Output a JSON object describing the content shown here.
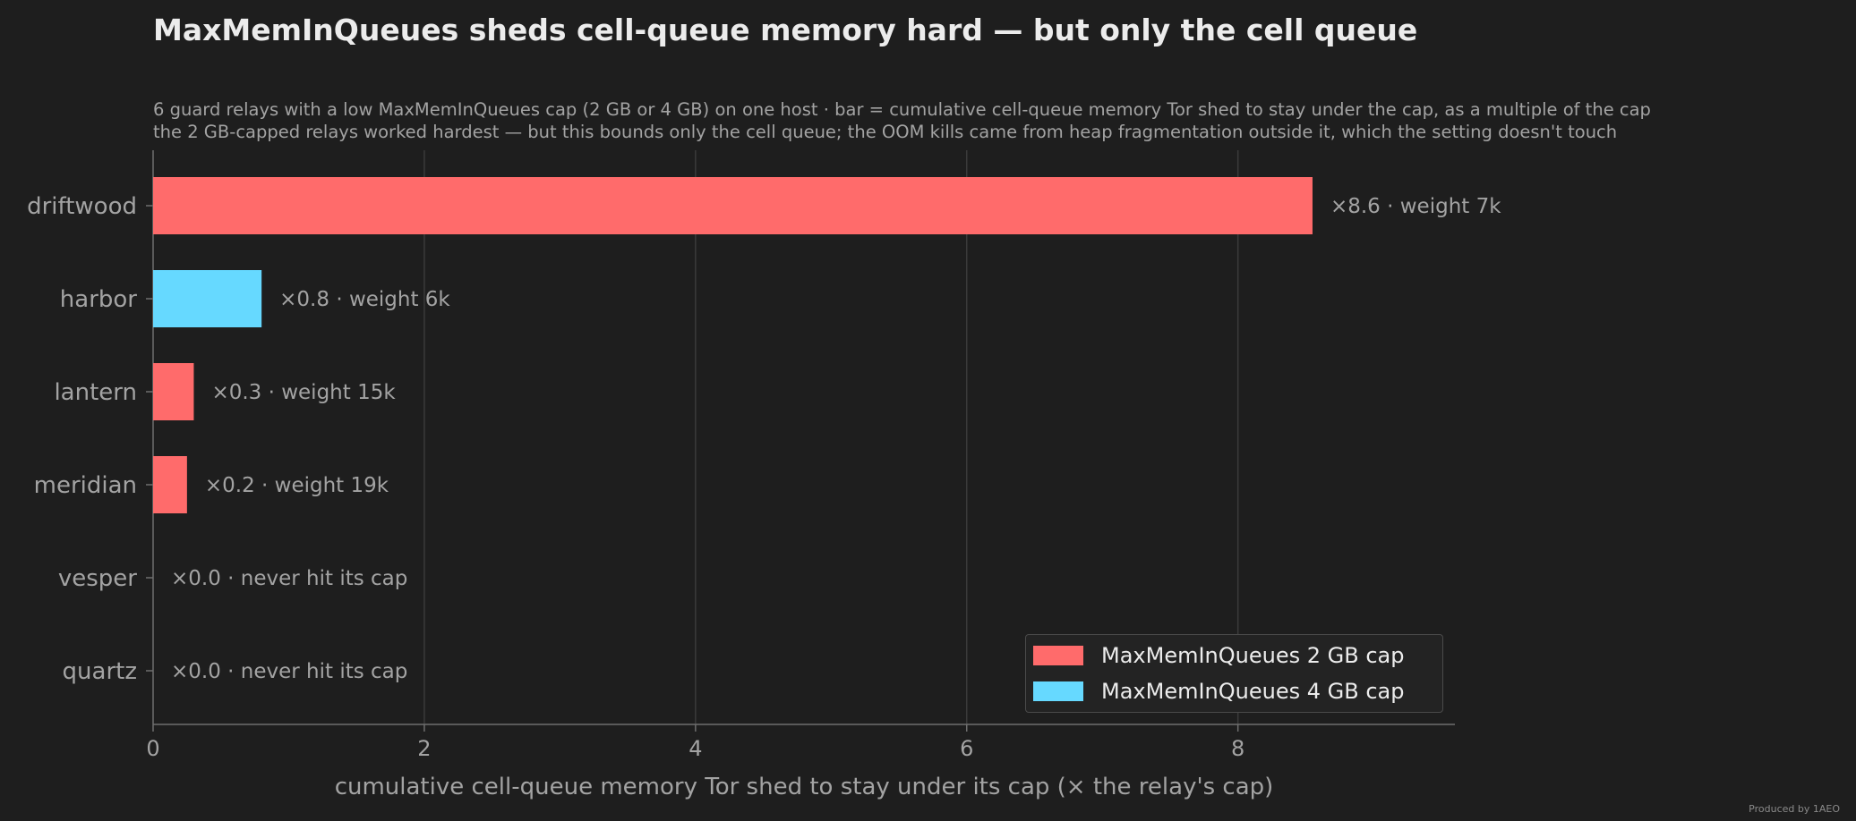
{
  "chart_data": {
    "type": "bar",
    "orientation": "horizontal",
    "title": "MaxMemInQueues sheds cell-queue memory hard — but only the cell queue",
    "subtitle": [
      "6 guard relays with a low MaxMemInQueues cap (2 GB or 4 GB) on one host · bar = cumulative cell-queue memory Tor shed to stay under the cap, as a multiple of the cap",
      "the 2 GB-capped relays worked hardest — but this bounds only the cell queue; the OOM kills came from heap fragmentation outside it, which the setting doesn't touch"
    ],
    "xlabel": "cumulative cell-queue memory Tor shed to stay under its cap  (× the relay's cap)",
    "ylabel": "",
    "xlim": [
      0,
      9.6
    ],
    "xticks": [
      0,
      2,
      4,
      6,
      8
    ],
    "grid": "vertical",
    "legend_position": "lower-right",
    "categories": [
      "driftwood",
      "harbor",
      "lantern",
      "meridian",
      "vesper",
      "quartz"
    ],
    "values": [
      8.55,
      0.8,
      0.3,
      0.25,
      0.0,
      0.0
    ],
    "cap_group": [
      "2 GB",
      "4 GB",
      "2 GB",
      "2 GB",
      "2 GB",
      "2 GB"
    ],
    "bar_labels": [
      "×8.6  ·  weight 7k",
      "×0.8  ·  weight 6k",
      "×0.3  ·  weight 15k",
      "×0.2  ·  weight 19k",
      "×0.0  ·  never hit its cap",
      "×0.0  ·  never hit its cap"
    ],
    "series": [
      {
        "name": "MaxMemInQueues 2 GB cap",
        "key": "2 GB",
        "color": "#ff6b6b"
      },
      {
        "name": "MaxMemInQueues 4 GB cap",
        "key": "4 GB",
        "color": "#66d9ff"
      }
    ]
  },
  "footer": {
    "credit": "Produced by 1AEO"
  },
  "colors": {
    "background": "#1e1e1e",
    "grid": "#3a3a3a",
    "axis": "#6e6e6e",
    "text_muted": "#a3a3a3",
    "text_main": "#ececec"
  }
}
